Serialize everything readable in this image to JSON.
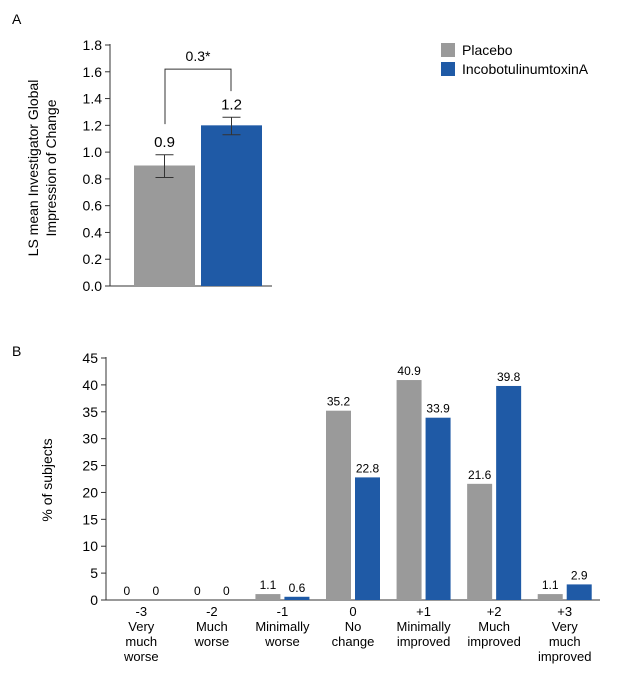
{
  "colors": {
    "placebo": "#9a9a9a",
    "treatment": "#1f5aa6",
    "axis": "#333333"
  },
  "chart_data": [
    {
      "panel_label": "A",
      "type": "bar",
      "categories": [
        "Placebo",
        "IncobotulinumtoxinA"
      ],
      "series": [
        {
          "name": "Placebo",
          "value": 0.9,
          "error": [
            0.81,
            0.98
          ],
          "label": "0.9"
        },
        {
          "name": "IncobotulinumtoxinA",
          "value": 1.2,
          "error": [
            1.13,
            1.26
          ],
          "label": "1.2"
        }
      ],
      "ylabel_line1": "LS mean Investigator Global",
      "ylabel_line2": "Impression of Change",
      "ylim": [
        0,
        1.8
      ],
      "yticks": [
        "0.0",
        "0.2",
        "0.4",
        "0.6",
        "0.8",
        "1.0",
        "1.2",
        "1.4",
        "1.6",
        "1.8"
      ],
      "annotation": "0.3*",
      "legend": [
        "Placebo",
        "IncobotulinumtoxinA"
      ],
      "legend_position": "top-right"
    },
    {
      "panel_label": "B",
      "type": "bar",
      "ylabel": "% of subjects",
      "ylim": [
        0,
        45
      ],
      "yticks": [
        "0",
        "5",
        "10",
        "15",
        "20",
        "25",
        "30",
        "35",
        "40",
        "45"
      ],
      "categories": [
        {
          "code": "-3",
          "lines": [
            "Very",
            "much",
            "worse"
          ]
        },
        {
          "code": "-2",
          "lines": [
            "Much",
            "worse"
          ]
        },
        {
          "code": "-1",
          "lines": [
            "Minimally",
            "worse"
          ]
        },
        {
          "code": "0",
          "lines": [
            "No",
            "change"
          ]
        },
        {
          "code": "+1",
          "lines": [
            "Minimally",
            "improved"
          ]
        },
        {
          "code": "+2",
          "lines": [
            "Much",
            "improved"
          ]
        },
        {
          "code": "+3",
          "lines": [
            "Very",
            "much",
            "improved"
          ]
        }
      ],
      "series": [
        {
          "name": "Placebo",
          "values": [
            0,
            0,
            1.1,
            35.2,
            40.9,
            21.6,
            1.1
          ],
          "labels": [
            "0",
            "0",
            "1.1",
            "35.2",
            "40.9",
            "21.6",
            "1.1"
          ]
        },
        {
          "name": "IncobotulinumtoxinA",
          "values": [
            0,
            0,
            0.6,
            22.8,
            33.9,
            39.8,
            2.9
          ],
          "labels": [
            "0",
            "0",
            "0.6",
            "22.8",
            "33.9",
            "39.8",
            "2.9"
          ]
        }
      ]
    }
  ]
}
